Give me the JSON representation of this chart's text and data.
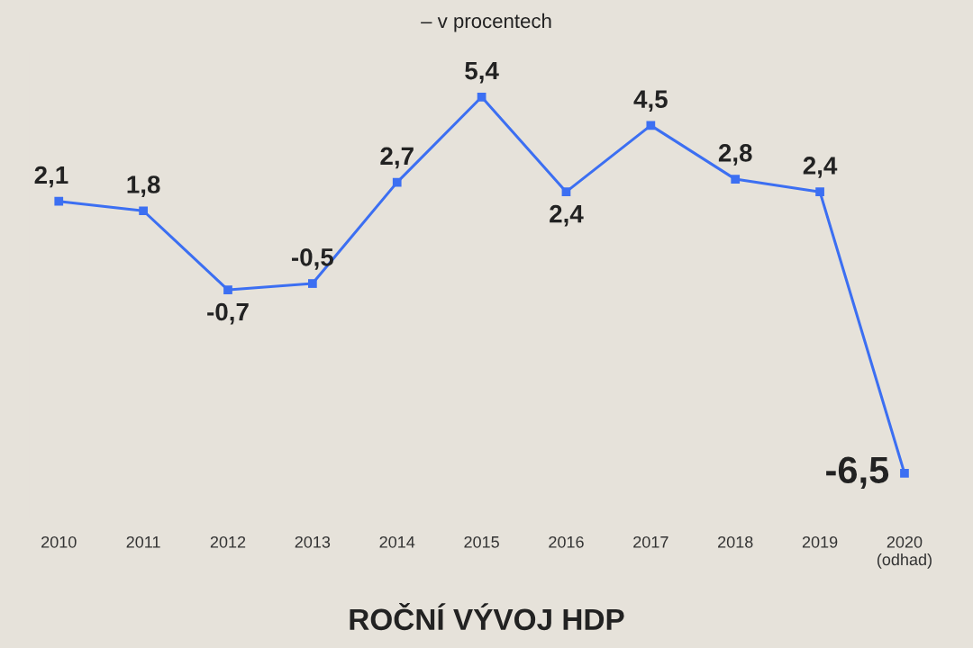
{
  "chart_data": {
    "type": "line",
    "title": "ROČNÍ VÝVOJ HDP",
    "subtitle": "– v procentech",
    "categories": [
      "2010",
      "2011",
      "2012",
      "2013",
      "2014",
      "2015",
      "2016",
      "2017",
      "2018",
      "2019",
      "2020\n(odhad)"
    ],
    "series": [
      {
        "color": "#3c6ff2",
        "values": [
          2.1,
          1.8,
          -0.7,
          -0.5,
          2.7,
          5.4,
          2.4,
          4.5,
          2.8,
          2.4,
          -6.5
        ],
        "value_labels": [
          "2,1",
          "1,8",
          "-0,7",
          "-0,5",
          "2,7",
          "5,4",
          "2,4",
          "4,5",
          "2,8",
          "2,4",
          "-6,5"
        ]
      }
    ],
    "marker": "square",
    "line_style": "solid",
    "grid": false,
    "legend": false,
    "tick_labels": "x"
  }
}
